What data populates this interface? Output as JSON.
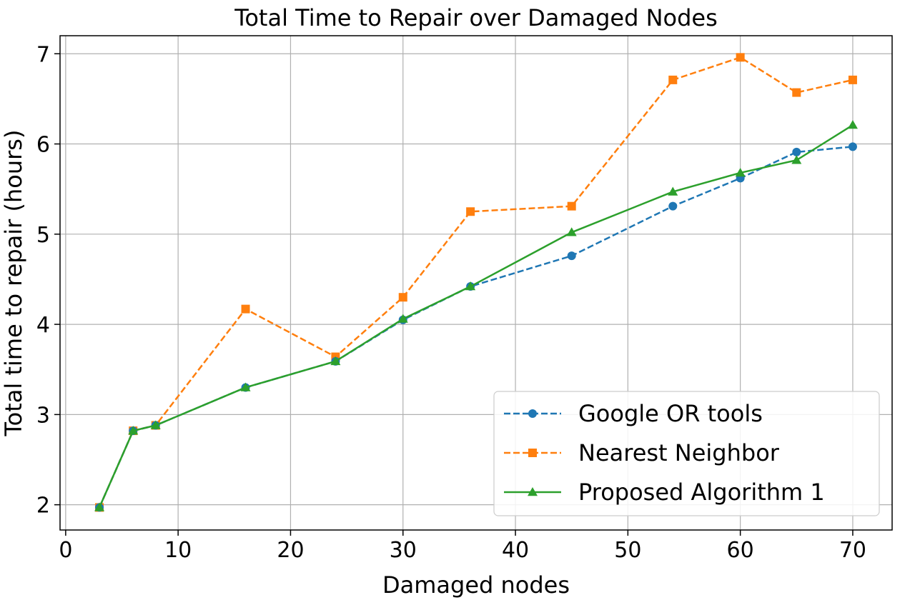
{
  "chart_data": {
    "type": "line",
    "title": "Total Time to Repair over Damaged Nodes",
    "xlabel": "Damaged nodes",
    "ylabel": "Total time to repair (hours)",
    "xlim": [
      -0.5,
      73.5
    ],
    "ylim": [
      1.72,
      7.2
    ],
    "xticks": [
      0,
      10,
      20,
      30,
      40,
      50,
      60,
      70
    ],
    "yticks": [
      2,
      3,
      4,
      5,
      6,
      7
    ],
    "grid": true,
    "legend_position": "lower-right",
    "series": [
      {
        "name": "Google OR tools",
        "color": "#1f77b4",
        "line_style": "dashed",
        "marker": "circle",
        "x": [
          3,
          6,
          8,
          16,
          24,
          30,
          36,
          45,
          54,
          60,
          65,
          70
        ],
        "y": [
          1.97,
          2.82,
          2.88,
          3.3,
          3.59,
          4.05,
          4.42,
          4.76,
          5.31,
          5.62,
          5.91,
          5.97
        ]
      },
      {
        "name": "Nearest Neighbor",
        "color": "#ff7f0e",
        "line_style": "dashed",
        "marker": "square",
        "x": [
          3,
          6,
          8,
          16,
          24,
          30,
          36,
          45,
          54,
          60,
          65,
          70
        ],
        "y": [
          1.97,
          2.82,
          2.88,
          4.17,
          3.64,
          4.3,
          5.25,
          5.31,
          6.71,
          6.96,
          6.57,
          6.71
        ]
      },
      {
        "name": "Proposed Algorithm 1",
        "color": "#2ca02c",
        "line_style": "solid",
        "marker": "triangle",
        "x": [
          3,
          6,
          8,
          16,
          24,
          30,
          36,
          45,
          54,
          60,
          65,
          70
        ],
        "y": [
          1.97,
          2.82,
          2.88,
          3.3,
          3.59,
          4.06,
          4.42,
          5.02,
          5.47,
          5.68,
          5.82,
          6.21
        ]
      }
    ]
  }
}
